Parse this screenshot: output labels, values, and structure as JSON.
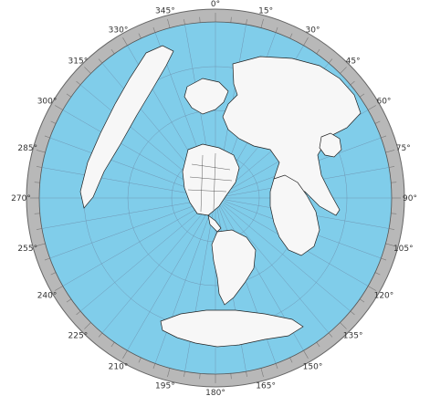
{
  "map": {
    "projection_style": "polar azimuthal equidistant",
    "ocean_color": "#80cdea",
    "land_color": "#f7f7f7",
    "ring_color": "#b8b8b8",
    "degree_labels": [
      "0°",
      "15°",
      "30°",
      "45°",
      "60°",
      "75°",
      "90°",
      "105°",
      "120°",
      "135°",
      "150°",
      "165°",
      "180°",
      "195°",
      "210°",
      "225°",
      "240°",
      "255°",
      "270°",
      "285°",
      "300°",
      "315°",
      "330°",
      "345°"
    ]
  }
}
